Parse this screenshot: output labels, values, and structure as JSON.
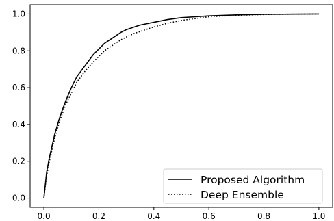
{
  "chart_data": {
    "type": "line",
    "title": "",
    "xlabel": "",
    "ylabel": "",
    "xlim": [
      -0.05,
      1.05
    ],
    "ylim": [
      -0.05,
      1.05
    ],
    "xticks": [
      0.0,
      0.2,
      0.4,
      0.6,
      0.8,
      1.0
    ],
    "xtick_labels": [
      "0.0",
      "0.2",
      "0.4",
      "0.6",
      "0.8",
      "1.0"
    ],
    "yticks": [
      0.0,
      0.2,
      0.4,
      0.6,
      0.8,
      1.0
    ],
    "ytick_labels": [
      "0.0",
      "0.2",
      "0.4",
      "0.6",
      "0.8",
      "1.0"
    ],
    "grid": false,
    "legend_position": "bottom-right",
    "series": [
      {
        "name": "Proposed Algorithm",
        "style": "solid",
        "color": "#000000",
        "x": [
          0.0,
          0.01,
          0.02,
          0.04,
          0.06,
          0.08,
          0.1,
          0.12,
          0.15,
          0.18,
          0.2,
          0.22,
          0.25,
          0.28,
          0.3,
          0.33,
          0.35,
          0.4,
          0.45,
          0.5,
          0.55,
          0.6,
          0.7,
          0.8,
          0.9,
          1.0
        ],
        "y": [
          0.0,
          0.14,
          0.22,
          0.35,
          0.45,
          0.53,
          0.6,
          0.66,
          0.72,
          0.78,
          0.81,
          0.84,
          0.87,
          0.9,
          0.915,
          0.93,
          0.94,
          0.955,
          0.97,
          0.98,
          0.985,
          0.99,
          0.995,
          0.998,
          0.999,
          1.0
        ]
      },
      {
        "name": "Deep Ensemble",
        "style": "dotted",
        "color": "#000000",
        "x": [
          0.0,
          0.01,
          0.02,
          0.04,
          0.06,
          0.08,
          0.1,
          0.12,
          0.15,
          0.18,
          0.2,
          0.22,
          0.25,
          0.28,
          0.3,
          0.33,
          0.35,
          0.4,
          0.45,
          0.5,
          0.55,
          0.6,
          0.7,
          0.8,
          0.9,
          1.0
        ],
        "y": [
          0.0,
          0.12,
          0.2,
          0.33,
          0.43,
          0.51,
          0.57,
          0.63,
          0.69,
          0.74,
          0.77,
          0.8,
          0.83,
          0.86,
          0.875,
          0.895,
          0.905,
          0.93,
          0.95,
          0.965,
          0.975,
          0.985,
          0.993,
          0.997,
          0.999,
          1.0
        ]
      }
    ]
  }
}
